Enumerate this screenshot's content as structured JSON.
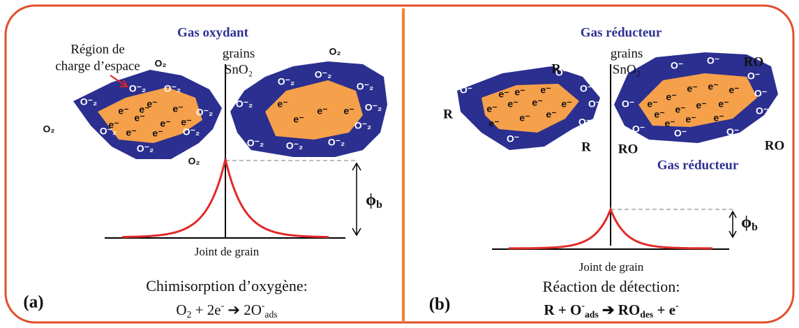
{
  "panel_a": {
    "tag": "(a)",
    "gas": "Gas oxydant",
    "region": [
      "Région de",
      "charge d’espace"
    ],
    "grains": "grains",
    "grain_material": "SnO₂",
    "left_grain": {
      "ions": [
        "O⁻₂",
        "O⁻₂",
        "O⁻₂",
        "O⁻₂",
        "O⁻₂",
        "O⁻₂",
        "O⁻₂"
      ],
      "electrons": [
        "e⁻",
        "e⁻",
        "e⁻",
        "e⁻",
        "e⁻",
        "e⁻",
        "e⁻",
        "e⁻",
        "e⁻",
        "e⁻"
      ]
    },
    "right_grain": {
      "ions": [
        "O⁻₂",
        "O⁻₂",
        "O⁻₂",
        "O⁻₂",
        "O⁻₂",
        "O⁻₂",
        "O⁻₂",
        "O⁻₂",
        "O⁻₂"
      ],
      "electrons": [
        "e⁻",
        "e⁻",
        "e⁻",
        "e⁻"
      ]
    },
    "gas_molecules": [
      "O₂",
      "O₂",
      "O₂",
      "O₂"
    ],
    "barrier": [
      {
        "t": "ϕ"
      },
      {
        "t": "b",
        "s": "sub"
      }
    ],
    "boundary": "Joint de grain",
    "caption": "Chimisorption d’oxygène:",
    "equation": [
      {
        "t": "O"
      },
      {
        "t": "2",
        "s": "sub"
      },
      {
        "t": " + 2e"
      },
      {
        "t": "-",
        "s": "sup"
      },
      {
        "t": " ➔ 2O"
      },
      {
        "t": "-",
        "s": "sup"
      },
      {
        "t": "ads",
        "s": "sub"
      }
    ]
  },
  "panel_b": {
    "tag": "(b)",
    "gas_top": "Gas réducteur",
    "gas_bottom": "Gas réducteur",
    "grains": "grains",
    "grain_material": "SnO₂",
    "left_grain": {
      "ions": [
        "O⁻",
        "O⁻",
        "O⁻",
        "O⁻",
        "O⁻",
        "O⁻"
      ],
      "electrons": [
        "e⁻",
        "e⁻",
        "e⁻",
        "e⁻",
        "e⁻",
        "e⁻",
        "e⁻",
        "e⁻",
        "e⁻",
        "e⁻"
      ]
    },
    "right_grain": {
      "ions": [
        "O⁻",
        "O⁻",
        "O⁻",
        "O⁻",
        "O⁻",
        "O⁻",
        "O⁻",
        "O⁻",
        "O⁻"
      ],
      "electrons": [
        "e⁻",
        "e⁻",
        "e⁻",
        "e⁻",
        "e⁻",
        "e⁻",
        "e⁻",
        "e⁻",
        "e⁻",
        "e⁻",
        "e⁻",
        "e⁻"
      ]
    },
    "gas_molecules": [
      "R",
      "RO",
      "R",
      "R",
      "RO",
      "RO"
    ],
    "barrier": [
      {
        "t": "ϕ"
      },
      {
        "t": "b",
        "s": "sub"
      }
    ],
    "boundary": "Joint de grain",
    "caption": "Réaction de détection:",
    "equation": [
      {
        "t": "R + O"
      },
      {
        "t": "-",
        "s": "sup"
      },
      {
        "t": "ads",
        "s": "sub"
      },
      {
        "t": " ➔ RO"
      },
      {
        "t": "des",
        "s": "sub"
      },
      {
        "t": " + e"
      },
      {
        "t": "-",
        "s": "sup"
      }
    ]
  }
}
